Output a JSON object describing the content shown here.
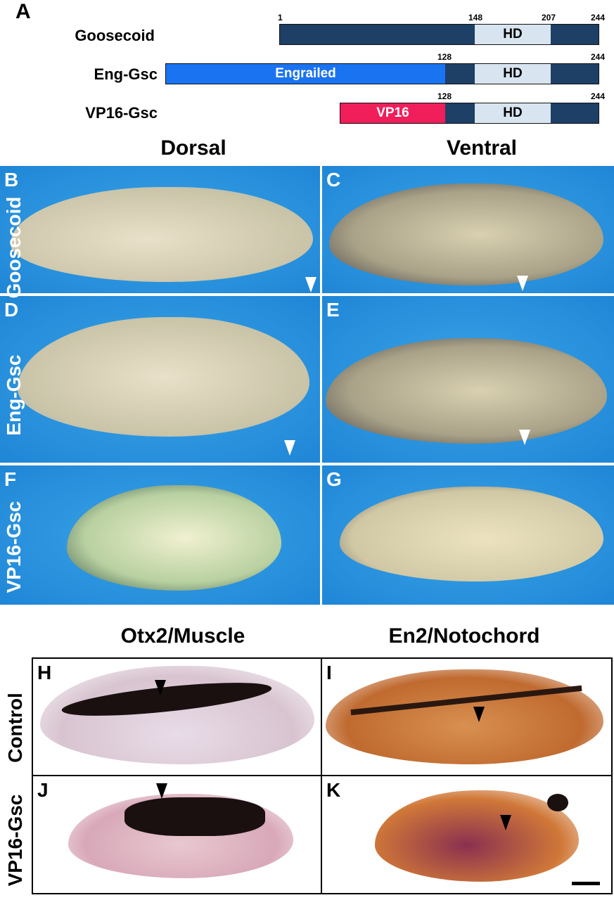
{
  "panel_a": {
    "letter": "A",
    "constructs": [
      {
        "name": "Goosecoid",
        "numbers": [
          "1",
          "148",
          "207",
          "244"
        ],
        "domain_label": "HD"
      },
      {
        "name": "Eng-Gsc",
        "numbers": [
          "128",
          "244"
        ],
        "fusion_label": "Engrailed",
        "domain_label": "HD"
      },
      {
        "name": "VP16-Gsc",
        "numbers": [
          "128",
          "244"
        ],
        "fusion_label": "VP16",
        "domain_label": "HD"
      }
    ],
    "colors": {
      "gsc": "#1e3f66",
      "hd": "#d8e4f0",
      "engrailed": "#1a73f0",
      "vp16": "#f01e5a"
    }
  },
  "photos_top": {
    "columns": [
      "Dorsal",
      "Ventral"
    ],
    "rows": [
      "Goosecoid",
      "Eng-Gsc",
      "VP16-Gsc"
    ],
    "letters": [
      "B",
      "C",
      "D",
      "E",
      "F",
      "G"
    ]
  },
  "photos_bottom": {
    "columns": [
      "Otx2/Muscle",
      "En2/Notochord"
    ],
    "rows": [
      "Control",
      "VP16-Gsc"
    ],
    "letters": [
      "H",
      "I",
      "J",
      "K"
    ]
  }
}
